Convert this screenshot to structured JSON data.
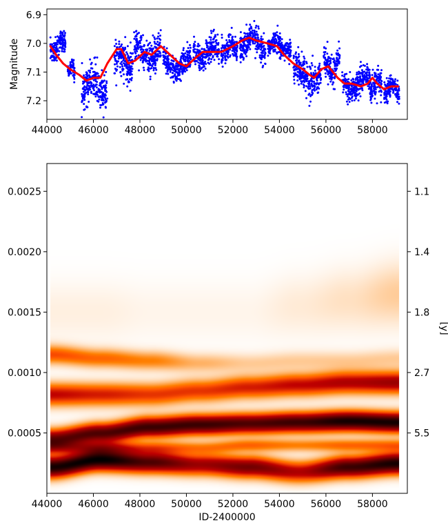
{
  "chart_data": [
    {
      "type": "scatter",
      "title": "",
      "xlabel": "",
      "ylabel": "Magnitude",
      "xlim": [
        44000,
        59500
      ],
      "ylim": [
        7.265,
        6.88
      ],
      "y_inverted": true,
      "xticks": [
        44000,
        46000,
        48000,
        50000,
        52000,
        54000,
        56000,
        58000
      ],
      "xtick_labels": [
        "44000",
        "46000",
        "48000",
        "50000",
        "52000",
        "54000",
        "56000",
        "58000"
      ],
      "yticks": [
        6.9,
        7.0,
        7.1,
        7.2
      ],
      "ytick_labels": [
        "6.9",
        "7.0",
        "7.1",
        "7.2"
      ],
      "grid": false,
      "colors": {
        "points": "#0000ff",
        "trend": "#ff0000"
      },
      "series": [
        {
          "kind": "trend",
          "x": [
            44150,
            44400,
            44700,
            45000,
            45400,
            45700,
            46000,
            46300,
            46600,
            47000,
            47200,
            47500,
            47800,
            48200,
            48500,
            48900,
            49300,
            49700,
            50000,
            50400,
            50700,
            51000,
            51500,
            52000,
            52400,
            52700,
            53000,
            53500,
            53900,
            54200,
            54600,
            55000,
            55300,
            55500,
            55800,
            56100,
            56500,
            56800,
            57100,
            57500,
            57800,
            58000,
            58200,
            58500,
            58800,
            59100
          ],
          "y": [
            7.01,
            7.04,
            7.07,
            7.09,
            7.11,
            7.13,
            7.12,
            7.12,
            7.07,
            7.02,
            7.02,
            7.07,
            7.06,
            7.03,
            7.04,
            7.01,
            7.04,
            7.07,
            7.08,
            7.05,
            7.03,
            7.03,
            7.03,
            7.01,
            6.99,
            6.98,
            6.99,
            7.0,
            7.01,
            7.04,
            7.07,
            7.09,
            7.11,
            7.12,
            7.09,
            7.08,
            7.12,
            7.14,
            7.14,
            7.15,
            7.14,
            7.12,
            7.14,
            7.16,
            7.15,
            7.15
          ]
        },
        {
          "kind": "points",
          "segments": [
            {
              "x": [
                44150,
                44800
              ],
              "center": 7.01,
              "spread": 0.035
            },
            {
              "x": [
                44900,
                45200
              ],
              "center": 7.09,
              "spread": 0.025
            },
            {
              "x": [
                45500,
                46600
              ],
              "center": 7.15,
              "spread": 0.055
            },
            {
              "x": [
                46900,
                47700
              ],
              "center": 7.06,
              "spread": 0.06
            },
            {
              "x": [
                47750,
                48900
              ],
              "center": 7.03,
              "spread": 0.05
            },
            {
              "x": [
                49000,
                50200
              ],
              "center": 7.07,
              "spread": 0.04
            },
            {
              "x": [
                50300,
                51400
              ],
              "center": 7.03,
              "spread": 0.04
            },
            {
              "x": [
                51500,
                52200
              ],
              "center": 7.02,
              "spread": 0.035
            },
            {
              "x": [
                52300,
                53400
              ],
              "center": 7.0,
              "spread": 0.045
            },
            {
              "x": [
                53500,
                54500
              ],
              "center": 7.01,
              "spread": 0.035
            },
            {
              "x": [
                54600,
                55800
              ],
              "center": 7.11,
              "spread": 0.05
            },
            {
              "x": [
                55900,
                56600
              ],
              "center": 7.08,
              "spread": 0.045
            },
            {
              "x": [
                56700,
                57900
              ],
              "center": 7.14,
              "spread": 0.04
            },
            {
              "x": [
                57900,
                58400
              ],
              "center": 7.14,
              "spread": 0.045
            },
            {
              "x": [
                58500,
                59150
              ],
              "center": 7.16,
              "spread": 0.035
            }
          ]
        }
      ]
    },
    {
      "type": "heatmap",
      "title": "",
      "xlabel": "ID-2400000",
      "ylabel": "",
      "secondary_ylabel": "[y]",
      "colormap": "gist_heat_r",
      "xlim": [
        44000,
        59500
      ],
      "ylim": [
        0.0,
        0.00273
      ],
      "data_xrange": [
        44150,
        59150
      ],
      "xticks": [
        44000,
        46000,
        48000,
        50000,
        52000,
        54000,
        56000,
        58000
      ],
      "xtick_labels": [
        "44000",
        "46000",
        "48000",
        "50000",
        "52000",
        "54000",
        "56000",
        "58000"
      ],
      "yticks": [
        0.0005,
        0.001,
        0.0015,
        0.002,
        0.0025
      ],
      "ytick_labels": [
        "0.0005",
        "0.0010",
        "0.0015",
        "0.0020",
        "0.0025"
      ],
      "secondary_yticks": [
        0.0005,
        0.001,
        0.0015,
        0.002,
        0.0025
      ],
      "secondary_ytick_labels": [
        "5.5",
        "2.7",
        "1.8",
        "1.4",
        "1.1"
      ],
      "bands": [
        {
          "freq": [
            0.00022,
            0.00028,
            0.00026,
            0.00024,
            0.00022,
            0.00018,
            0.00022,
            0.00025
          ],
          "width": 8.5e-05,
          "intensity": [
            0.95,
            1.0,
            0.8,
            0.6,
            0.7,
            0.55,
            0.85,
            0.95
          ]
        },
        {
          "freq": [
            0.00045,
            0.0005,
            0.00055,
            0.00057,
            0.00058,
            0.00059,
            0.0006,
            0.00059
          ],
          "width": 8e-05,
          "intensity": [
            0.75,
            0.8,
            0.85,
            0.85,
            0.8,
            0.85,
            0.95,
            0.95
          ]
        },
        {
          "freq": [
            0.00038,
            0.00038,
            0.00038,
            0.00038,
            0.0004,
            0.0004,
            0.0004,
            0.0004
          ],
          "width": 5e-05,
          "intensity": [
            0.3,
            0.35,
            0.3,
            0.25,
            0.3,
            0.25,
            0.3,
            0.3
          ]
        },
        {
          "freq": [
            0.00082,
            0.00082,
            0.00082,
            0.00085,
            0.00088,
            0.0009,
            0.00092,
            0.00092
          ],
          "width": 9e-05,
          "intensity": [
            0.5,
            0.45,
            0.4,
            0.4,
            0.45,
            0.5,
            0.55,
            0.6
          ]
        },
        {
          "freq": [
            0.00115,
            0.00112,
            0.0011,
            0.00108,
            0.00108,
            0.0011,
            0.0011,
            0.00112
          ],
          "width": 7.5e-05,
          "intensity": [
            0.35,
            0.3,
            0.25,
            0.15,
            0.1,
            0.1,
            0.1,
            0.1
          ]
        },
        {
          "freq": [
            0.0015,
            0.0015,
            0.0015,
            0.0015,
            0.0015,
            0.00155,
            0.0016,
            0.00165
          ],
          "width": 0.00025,
          "intensity": [
            0.03,
            0.03,
            0.02,
            0.02,
            0.02,
            0.04,
            0.06,
            0.1
          ]
        }
      ]
    }
  ]
}
